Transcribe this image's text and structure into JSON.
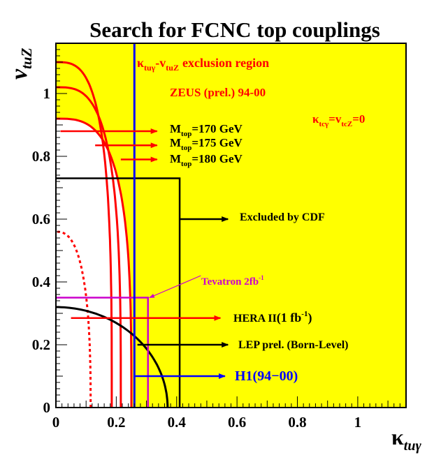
{
  "chart_data": {
    "type": "line",
    "title": "Search for FCNC top couplings",
    "xlabel": "κ",
    "xlabel_sub": "tuγ",
    "ylabel": "v",
    "ylabel_sub": "tuZ",
    "xlim": [
      0,
      1.16
    ],
    "ylim": [
      0,
      1.16
    ],
    "xticks": [
      0,
      0.2,
      0.4,
      0.6,
      0.8,
      1
    ],
    "xtick_labels": [
      "0",
      "0.2",
      "0.4",
      "0.6",
      "0.8",
      "1"
    ],
    "yticks": [
      0,
      0.2,
      0.4,
      0.6,
      0.8,
      1
    ],
    "ytick_labels": [
      "0",
      "0.2",
      "0.4",
      "0.6",
      "0.8",
      "1"
    ],
    "background_color": "#ffff00",
    "colors": {
      "red": "#ff0000",
      "blue": "#0000ff",
      "black": "#000000",
      "magenta": "#cc00cc",
      "white": "#ffffff"
    },
    "annotations": {
      "exclusion": {
        "main": "exclusion region",
        "k": "κ",
        "k_sub": "tuγ",
        "dash": "-v",
        "v_sub": "tuZ"
      },
      "zeus": "ZEUS (prel.) 94-00",
      "ktc": {
        "k": "κ",
        "k_sub": "tcγ",
        "eq": "=v",
        "v_sub": "tcZ",
        "rest": "=0"
      },
      "mtop": [
        {
          "m": "M",
          "sub": "top",
          "rest": "=170 GeV"
        },
        {
          "m": "M",
          "sub": "top",
          "rest": "=175 GeV"
        },
        {
          "m": "M",
          "sub": "top",
          "rest": "=180 GeV"
        }
      ],
      "cdf": "Excluded by CDF",
      "tevatron": {
        "text": "Tevatron 2fb",
        "sup": "-1"
      },
      "hera": {
        "text": "HERA II",
        "lumi": "(1 fb",
        "sup": "-1",
        "close": ")"
      },
      "lep": "LEP prel. (Born-Level)",
      "h1": "H1(94−00)"
    },
    "series": [
      {
        "name": "ZEUS Mtop=170 GeV",
        "color": "#ff0000",
        "style": "solid",
        "kmax": 0.185,
        "vmax": 1.1
      },
      {
        "name": "ZEUS Mtop=175 GeV",
        "color": "#ff0000",
        "style": "solid",
        "kmax": 0.215,
        "vmax": 1.02
      },
      {
        "name": "ZEUS Mtop=180 GeV",
        "color": "#ff0000",
        "style": "solid",
        "kmax": 0.25,
        "vmax": 0.92
      },
      {
        "name": "HERA II (1 fb-1)",
        "color": "#ff0000",
        "style": "dashed",
        "kmax": 0.115,
        "vmax": 0.56
      },
      {
        "name": "LEP prel. (Born-Level)",
        "color": "#000000",
        "style": "solid",
        "kmax": 0.37,
        "vmax": 0.32
      },
      {
        "name": "Excluded by CDF",
        "color": "#000000",
        "style": "box",
        "kmax": 0.41,
        "vmax": 0.73
      },
      {
        "name": "Tevatron 2fb-1",
        "color": "#cc00cc",
        "style": "box",
        "kmax": 0.305,
        "vmax": 0.35
      },
      {
        "name": "H1(94-00)",
        "color": "#0000ff",
        "style": "vline",
        "x": 0.26
      }
    ]
  }
}
